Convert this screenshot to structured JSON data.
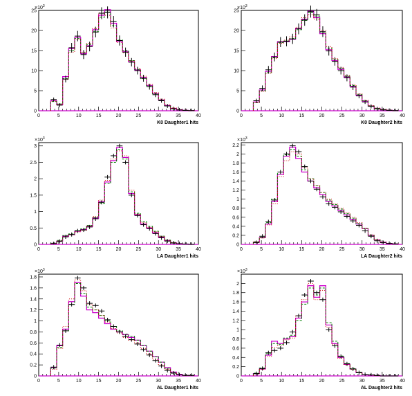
{
  "colors": {
    "data": "#000000",
    "mc_magenta": "#cc00cc",
    "mc_green": "#008000",
    "mc_red": "#cc0000"
  },
  "chart_data": [
    {
      "type": "histogram",
      "xlabel": "K0 Daughter1 hits",
      "xlim": [
        0,
        40
      ],
      "ylim": [
        0,
        25
      ],
      "yexp": "10",
      "yticks": [
        0,
        5,
        10,
        15,
        20,
        25
      ],
      "bin_width": 1.5,
      "x_start": 3,
      "series": [
        {
          "style": "magenta-line",
          "values": [
            2.5,
            1.5,
            8.5,
            15.5,
            18.3,
            14.2,
            16.2,
            20.2,
            23.8,
            25.2,
            21.8,
            17.2,
            14.8,
            12.2,
            10.2,
            8.3,
            6.3,
            4.3,
            2.7,
            1.3,
            0.6,
            0.25,
            0.1,
            0.05
          ]
        },
        {
          "style": "green-dashed",
          "values": [
            2.3,
            1.7,
            8.0,
            15.0,
            18.0,
            14.4,
            16.5,
            19.8,
            23.3,
            24.6,
            21.2,
            17.6,
            15.0,
            12.5,
            10.3,
            8.0,
            6.2,
            4.2,
            2.6,
            1.2,
            0.5,
            0.2,
            0.08,
            0.03
          ]
        },
        {
          "style": "red-dotted",
          "values": [
            2.4,
            1.6,
            7.8,
            14.6,
            17.8,
            14.6,
            16.8,
            20.5,
            24.4,
            23.8,
            20.6,
            17.0,
            14.4,
            12.4,
            10.6,
            8.6,
            6.6,
            4.5,
            2.9,
            1.5,
            0.7,
            0.3,
            0.12,
            0.05
          ]
        },
        {
          "style": "black-points",
          "values": [
            2.8,
            1.4,
            7.9,
            15.7,
            18.6,
            14.0,
            16.0,
            19.6,
            24.3,
            24.5,
            22.2,
            17.5,
            14.6,
            12.1,
            10.0,
            8.1,
            6.0,
            4.0,
            2.5,
            1.2,
            0.5,
            0.2,
            0.1,
            0.04
          ]
        }
      ]
    },
    {
      "type": "histogram",
      "xlabel": "K0 Daughter2 hits",
      "xlim": [
        0,
        40
      ],
      "ylim": [
        0,
        25
      ],
      "yexp": "10",
      "yticks": [
        0,
        5,
        10,
        15,
        20,
        25
      ],
      "bin_width": 1.5,
      "x_start": 3,
      "series": [
        {
          "style": "magenta-line",
          "values": [
            2.2,
            5.2,
            9.8,
            13.5,
            17.2,
            17.2,
            17.8,
            20.5,
            22.8,
            24.8,
            23.2,
            19.2,
            15.2,
            12.5,
            10.3,
            8.4,
            6.1,
            3.9,
            2.4,
            1.2,
            0.6,
            0.3,
            0.15,
            0.05
          ]
        },
        {
          "style": "green-dashed",
          "values": [
            2.0,
            5.0,
            9.5,
            13.2,
            17.0,
            17.4,
            18.0,
            20.2,
            22.5,
            24.4,
            23.6,
            19.6,
            15.6,
            12.8,
            10.6,
            8.6,
            6.3,
            4.0,
            2.5,
            1.2,
            0.6,
            0.3,
            0.12,
            0.04
          ]
        },
        {
          "style": "red-dotted",
          "values": [
            2.1,
            4.8,
            9.3,
            13.0,
            16.8,
            17.6,
            18.4,
            20.8,
            23.2,
            24.0,
            22.8,
            20.0,
            16.0,
            13.0,
            10.8,
            8.8,
            6.5,
            4.2,
            2.6,
            1.3,
            0.7,
            0.3,
            0.14,
            0.05
          ]
        },
        {
          "style": "black-points",
          "values": [
            2.5,
            5.6,
            10.2,
            13.4,
            17.1,
            17.3,
            17.9,
            20.4,
            22.6,
            24.7,
            23.9,
            19.7,
            14.9,
            12.3,
            10.0,
            8.2,
            5.9,
            3.7,
            2.2,
            1.1,
            0.5,
            0.2,
            0.1,
            0.03
          ]
        }
      ]
    },
    {
      "type": "histogram",
      "xlabel": "LA Daughter1 hits",
      "xlim": [
        0,
        40
      ],
      "ylim": [
        0,
        3.1
      ],
      "yexp": "10",
      "yticks": [
        0,
        0.5,
        1,
        1.5,
        2,
        2.5,
        3
      ],
      "bin_width": 1.5,
      "x_start": 3,
      "series": [
        {
          "style": "magenta-line",
          "values": [
            0.03,
            0.1,
            0.25,
            0.3,
            0.4,
            0.45,
            0.55,
            0.8,
            1.3,
            1.9,
            2.55,
            2.95,
            2.65,
            1.55,
            0.9,
            0.62,
            0.5,
            0.35,
            0.22,
            0.12,
            0.05,
            0.02,
            0.01,
            0
          ]
        },
        {
          "style": "green-dashed",
          "values": [
            0.04,
            0.12,
            0.27,
            0.32,
            0.42,
            0.47,
            0.58,
            0.82,
            1.25,
            1.85,
            2.5,
            2.9,
            2.6,
            1.6,
            0.95,
            0.7,
            0.55,
            0.4,
            0.25,
            0.13,
            0.06,
            0.02,
            0.01,
            0
          ]
        },
        {
          "style": "red-dotted",
          "values": [
            0.03,
            0.1,
            0.24,
            0.29,
            0.38,
            0.43,
            0.55,
            0.85,
            1.35,
            1.95,
            2.6,
            2.85,
            2.7,
            1.65,
            0.92,
            0.66,
            0.52,
            0.38,
            0.24,
            0.13,
            0.05,
            0.02,
            0.01,
            0
          ]
        },
        {
          "style": "black-points",
          "values": [
            0.02,
            0.09,
            0.23,
            0.3,
            0.41,
            0.44,
            0.53,
            0.78,
            1.28,
            2.05,
            2.7,
            3.0,
            2.5,
            1.5,
            0.88,
            0.6,
            0.48,
            0.33,
            0.2,
            0.1,
            0.04,
            0.02,
            0.01,
            0
          ]
        }
      ]
    },
    {
      "type": "histogram",
      "xlabel": "LA Daughter2 hits",
      "xlim": [
        0,
        40
      ],
      "ylim": [
        0,
        2.25
      ],
      "yexp": "10",
      "yticks": [
        0,
        0.2,
        0.4,
        0.6,
        0.8,
        1,
        1.2,
        1.4,
        1.6,
        1.8,
        2,
        2.2
      ],
      "bin_width": 1.5,
      "x_start": 3,
      "series": [
        {
          "style": "magenta-line",
          "values": [
            0.05,
            0.15,
            0.45,
            0.95,
            1.55,
            1.95,
            2.15,
            1.9,
            1.6,
            1.4,
            1.25,
            1.1,
            0.95,
            0.85,
            0.75,
            0.65,
            0.55,
            0.45,
            0.35,
            0.2,
            0.1,
            0.05,
            0.02,
            0.01
          ]
        },
        {
          "style": "green-dashed",
          "values": [
            0.06,
            0.16,
            0.48,
            1.0,
            1.6,
            1.98,
            2.1,
            1.95,
            1.65,
            1.45,
            1.3,
            1.15,
            0.98,
            0.88,
            0.78,
            0.68,
            0.58,
            0.46,
            0.35,
            0.2,
            0.1,
            0.04,
            0.02,
            0.01
          ]
        },
        {
          "style": "red-dotted",
          "values": [
            0.05,
            0.14,
            0.43,
            0.9,
            1.5,
            1.85,
            2.05,
            2.0,
            1.7,
            1.45,
            1.3,
            1.15,
            1.0,
            0.9,
            0.8,
            0.7,
            0.6,
            0.48,
            0.36,
            0.21,
            0.1,
            0.05,
            0.02,
            0.01
          ]
        },
        {
          "style": "black-points",
          "values": [
            0.04,
            0.18,
            0.5,
            0.98,
            1.6,
            2.0,
            2.18,
            2.05,
            1.72,
            1.4,
            1.22,
            1.05,
            0.9,
            0.82,
            0.72,
            0.62,
            0.52,
            0.42,
            0.3,
            0.18,
            0.08,
            0.04,
            0.02,
            0.01
          ]
        }
      ]
    },
    {
      "type": "histogram",
      "xlabel": "AL Daughter1 hits",
      "xlim": [
        0,
        40
      ],
      "ylim": [
        0,
        1.85
      ],
      "yexp": "10",
      "yticks": [
        0,
        0.2,
        0.4,
        0.6,
        0.8,
        1,
        1.2,
        1.4,
        1.6,
        1.8
      ],
      "bin_width": 1.5,
      "x_start": 3,
      "series": [
        {
          "style": "magenta-line",
          "values": [
            0.15,
            0.55,
            0.85,
            1.35,
            1.7,
            1.45,
            1.2,
            1.15,
            1.05,
            0.95,
            0.85,
            0.8,
            0.75,
            0.7,
            0.65,
            0.55,
            0.45,
            0.35,
            0.25,
            0.15,
            0.07,
            0.03,
            0.01,
            0.01
          ]
        },
        {
          "style": "green-dashed",
          "values": [
            0.14,
            0.52,
            0.82,
            1.3,
            1.68,
            1.5,
            1.25,
            1.2,
            1.1,
            1.0,
            0.9,
            0.82,
            0.76,
            0.72,
            0.65,
            0.55,
            0.45,
            0.35,
            0.25,
            0.14,
            0.06,
            0.02,
            0.01,
            0.01
          ]
        },
        {
          "style": "red-dotted",
          "values": [
            0.12,
            0.5,
            0.9,
            1.4,
            1.75,
            1.55,
            1.3,
            1.2,
            1.1,
            0.98,
            0.86,
            0.78,
            0.7,
            0.65,
            0.6,
            0.5,
            0.4,
            0.3,
            0.2,
            0.12,
            0.05,
            0.02,
            0.01,
            0.01
          ]
        },
        {
          "style": "black-points",
          "values": [
            0.16,
            0.56,
            0.82,
            1.3,
            1.78,
            1.6,
            1.32,
            1.28,
            1.18,
            1.02,
            0.9,
            0.8,
            0.72,
            0.66,
            0.58,
            0.48,
            0.38,
            0.28,
            0.18,
            0.1,
            0.05,
            0.02,
            0.01,
            0.01
          ]
        }
      ]
    },
    {
      "type": "histogram",
      "xlabel": "AL Daughter2 hits",
      "xlim": [
        0,
        40
      ],
      "ylim": [
        0,
        2.2
      ],
      "yexp": "10",
      "yticks": [
        0,
        0.2,
        0.4,
        0.6,
        0.8,
        1,
        1.2,
        1.4,
        1.6,
        1.8,
        2
      ],
      "bin_width": 1.5,
      "x_start": 3,
      "series": [
        {
          "style": "magenta-line",
          "values": [
            0.05,
            0.15,
            0.45,
            0.75,
            0.7,
            0.8,
            0.85,
            1.25,
            1.6,
            1.95,
            1.7,
            1.95,
            1.1,
            0.7,
            0.4,
            0.25,
            0.15,
            0.07,
            0.03,
            0.02,
            0.01,
            0,
            0,
            0
          ]
        },
        {
          "style": "green-dashed",
          "values": [
            0.06,
            0.17,
            0.48,
            0.7,
            0.68,
            0.82,
            0.88,
            1.2,
            1.55,
            1.9,
            1.75,
            1.9,
            1.15,
            0.75,
            0.43,
            0.27,
            0.16,
            0.08,
            0.03,
            0.02,
            0.01,
            0,
            0,
            0
          ]
        },
        {
          "style": "red-dotted",
          "values": [
            0.04,
            0.14,
            0.42,
            0.62,
            0.66,
            0.78,
            0.82,
            1.3,
            1.65,
            2.0,
            1.65,
            1.85,
            1.05,
            0.68,
            0.38,
            0.24,
            0.14,
            0.07,
            0.03,
            0.02,
            0.01,
            0,
            0,
            0
          ]
        },
        {
          "style": "black-points",
          "values": [
            0.05,
            0.16,
            0.5,
            0.55,
            0.6,
            0.72,
            0.95,
            1.3,
            1.75,
            2.05,
            1.8,
            1.65,
            1.0,
            0.65,
            0.42,
            0.26,
            0.15,
            0.07,
            0.03,
            0.02,
            0.01,
            0,
            0,
            0
          ]
        }
      ]
    }
  ]
}
